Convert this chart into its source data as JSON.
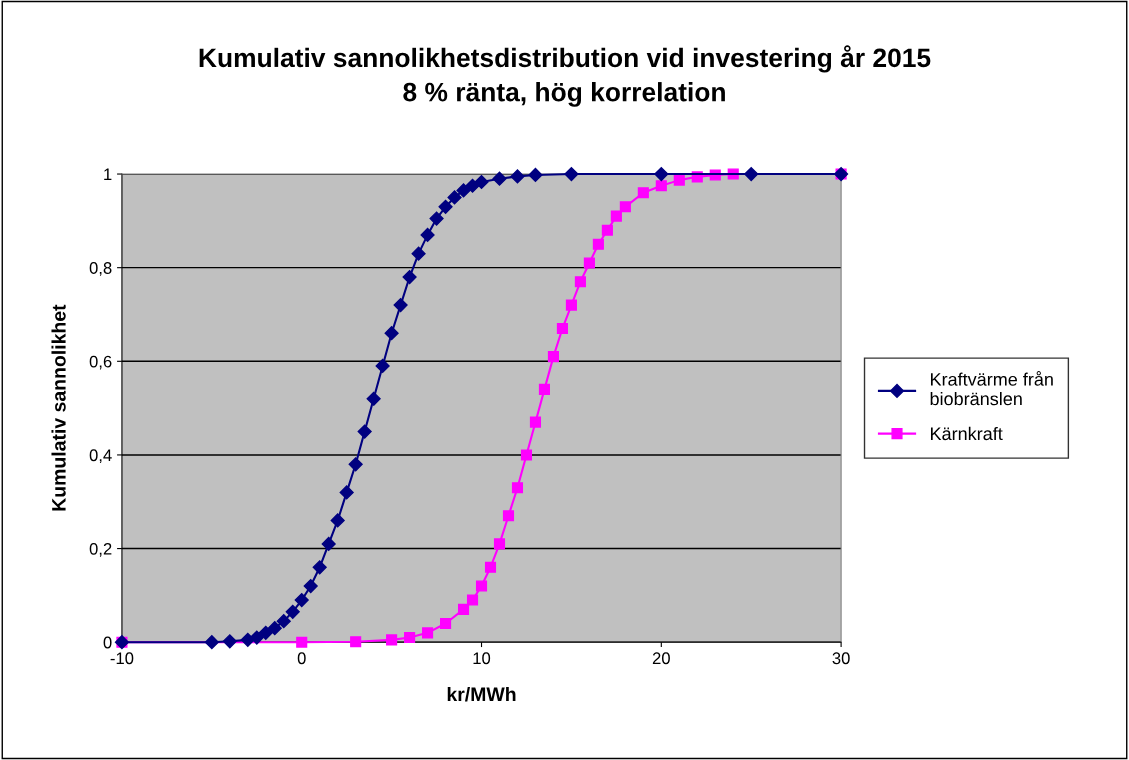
{
  "chart_data": {
    "type": "line",
    "title": "Kumulativ sannolikhetsdistribution vid investering år 2015\n8 % ränta, hög korrelation",
    "xlabel": "kr/MWh",
    "ylabel": "Kumulativ sannolikhet",
    "series": [
      {
        "name": "Kraftvärme från biobränslen",
        "color": "#000080",
        "marker": "diamond",
        "x": [
          -10,
          -5,
          -4,
          -3,
          -2.5,
          -2,
          -1.5,
          -1,
          -0.5,
          0,
          0.5,
          1,
          1.5,
          2,
          2.5,
          3,
          3.5,
          4,
          4.5,
          5,
          5.5,
          6,
          6.5,
          7,
          7.5,
          8,
          8.5,
          9,
          9.5,
          10,
          11,
          12,
          13,
          15,
          20,
          25,
          30
        ],
        "values": [
          0,
          0,
          0.002,
          0.005,
          0.01,
          0.02,
          0.03,
          0.045,
          0.065,
          0.09,
          0.12,
          0.16,
          0.21,
          0.26,
          0.32,
          0.38,
          0.45,
          0.52,
          0.59,
          0.66,
          0.72,
          0.78,
          0.83,
          0.87,
          0.905,
          0.93,
          0.95,
          0.965,
          0.975,
          0.983,
          0.99,
          0.995,
          0.998,
          1,
          1,
          1,
          1
        ]
      },
      {
        "name": "Kärnkraft",
        "color": "#ff00ff",
        "marker": "square",
        "x": [
          -10,
          0,
          3,
          5,
          6,
          7,
          8,
          9,
          9.5,
          10,
          10.5,
          11,
          11.5,
          12,
          12.5,
          13,
          13.5,
          14,
          14.5,
          15,
          15.5,
          16,
          16.5,
          17,
          17.5,
          18,
          19,
          20,
          21,
          22,
          23,
          24,
          30
        ],
        "values": [
          0,
          0,
          0.001,
          0.005,
          0.01,
          0.02,
          0.04,
          0.07,
          0.09,
          0.12,
          0.16,
          0.21,
          0.27,
          0.33,
          0.4,
          0.47,
          0.54,
          0.61,
          0.67,
          0.72,
          0.77,
          0.81,
          0.85,
          0.88,
          0.91,
          0.93,
          0.96,
          0.975,
          0.987,
          0.994,
          0.998,
          1,
          1
        ]
      }
    ],
    "xlim": [
      -10,
      30
    ],
    "xticks": [
      -10,
      0,
      10,
      20,
      30
    ],
    "ylim": [
      0,
      1
    ],
    "yticks": [
      0,
      {
        "value": 0.2,
        "label": "0,2"
      },
      {
        "value": 0.4,
        "label": "0,4"
      },
      {
        "value": 0.6,
        "label": "0,6"
      },
      {
        "value": 0.8,
        "label": "0,8"
      },
      1
    ],
    "grid": "y",
    "legend": "right",
    "line_style": "solid"
  }
}
